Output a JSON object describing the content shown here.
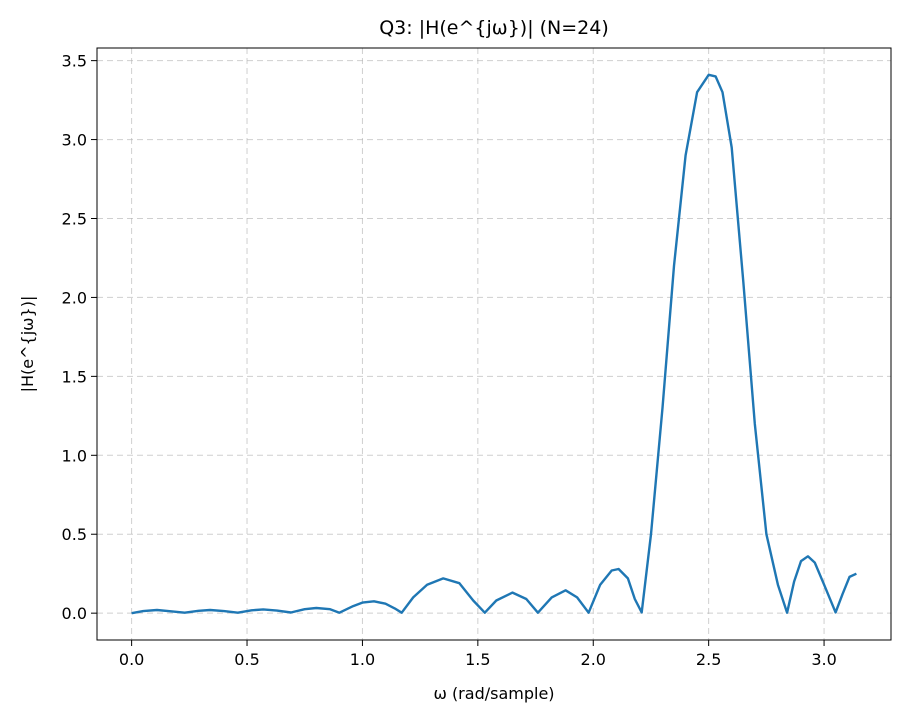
{
  "chart_data": {
    "type": "line",
    "title": "Q3: |H(e^{jω})| (N=24)",
    "xlabel": "ω (rad/sample)",
    "ylabel": "|H(e^{jω})|",
    "xlim": [
      -0.15,
      3.29
    ],
    "ylim": [
      -0.17,
      3.58
    ],
    "xticks": [
      0.0,
      0.5,
      1.0,
      1.5,
      2.0,
      2.5,
      3.0
    ],
    "xtick_labels": [
      "0.0",
      "0.5",
      "1.0",
      "1.5",
      "2.0",
      "2.5",
      "3.0"
    ],
    "yticks": [
      0.0,
      0.5,
      1.0,
      1.5,
      2.0,
      2.5,
      3.0,
      3.5
    ],
    "ytick_labels": [
      "0.0",
      "0.5",
      "1.0",
      "1.5",
      "2.0",
      "2.5",
      "3.0",
      "3.5"
    ],
    "grid": true,
    "series": [
      {
        "color": "#1f77b4",
        "x": [
          0.0,
          0.05,
          0.11,
          0.17,
          0.23,
          0.29,
          0.34,
          0.4,
          0.46,
          0.52,
          0.57,
          0.63,
          0.69,
          0.75,
          0.8,
          0.86,
          0.9,
          0.96,
          1.0,
          1.05,
          1.1,
          1.14,
          1.17,
          1.22,
          1.28,
          1.35,
          1.42,
          1.48,
          1.53,
          1.58,
          1.65,
          1.71,
          1.76,
          1.82,
          1.88,
          1.93,
          1.98,
          2.03,
          2.08,
          2.11,
          2.15,
          2.18,
          2.21,
          2.25,
          2.3,
          2.35,
          2.4,
          2.45,
          2.5,
          2.53,
          2.56,
          2.6,
          2.65,
          2.7,
          2.75,
          2.8,
          2.84,
          2.87,
          2.9,
          2.93,
          2.96,
          3.0,
          3.05,
          3.08,
          3.11,
          3.14
        ],
        "y": [
          0.0,
          0.013,
          0.02,
          0.012,
          0.003,
          0.015,
          0.02,
          0.013,
          0.003,
          0.018,
          0.024,
          0.016,
          0.004,
          0.025,
          0.033,
          0.025,
          0.003,
          0.045,
          0.067,
          0.075,
          0.06,
          0.03,
          0.003,
          0.1,
          0.18,
          0.22,
          0.19,
          0.08,
          0.003,
          0.08,
          0.13,
          0.09,
          0.003,
          0.1,
          0.145,
          0.1,
          0.003,
          0.18,
          0.27,
          0.28,
          0.22,
          0.09,
          0.005,
          0.5,
          1.3,
          2.2,
          2.9,
          3.3,
          3.41,
          3.4,
          3.3,
          2.95,
          2.1,
          1.2,
          0.5,
          0.18,
          0.003,
          0.2,
          0.33,
          0.36,
          0.32,
          0.18,
          0.005,
          0.12,
          0.23,
          0.25
        ]
      }
    ]
  }
}
